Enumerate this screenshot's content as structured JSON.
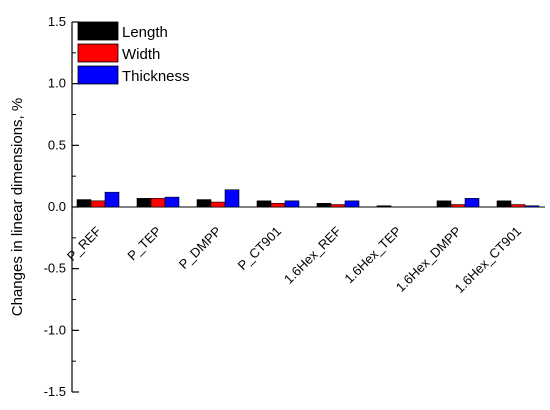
{
  "chart_data": {
    "type": "bar",
    "categories": [
      "P_REF",
      "P_TEP",
      "P_DMPP",
      "P_CT901",
      "1.6Hex_REF",
      "1.6Hex_TEP",
      "1.6Hex_DMPP",
      "1.6Hex_CT901"
    ],
    "series": [
      {
        "name": "Length",
        "color": "#000000",
        "values": [
          0.06,
          0.07,
          0.06,
          0.05,
          0.03,
          0.01,
          0.05,
          0.05
        ]
      },
      {
        "name": "Width",
        "color": "#ff0000",
        "values": [
          0.05,
          0.07,
          0.04,
          0.03,
          0.02,
          0.0,
          0.02,
          0.02
        ]
      },
      {
        "name": "Thickness",
        "color": "#0000ff",
        "values": [
          0.12,
          0.08,
          0.14,
          0.05,
          0.05,
          0.0,
          0.07,
          0.01
        ]
      }
    ],
    "title": "",
    "xlabel": "",
    "ylabel": "Changes in linear dimensions, %",
    "ylim": [
      -1.5,
      1.5
    ],
    "yticks": [
      "1.5",
      "1.0",
      "0.5",
      "0.0",
      "-0.5",
      "-1.0",
      "-1.5"
    ],
    "grid": false,
    "legend_position": "top-left"
  }
}
